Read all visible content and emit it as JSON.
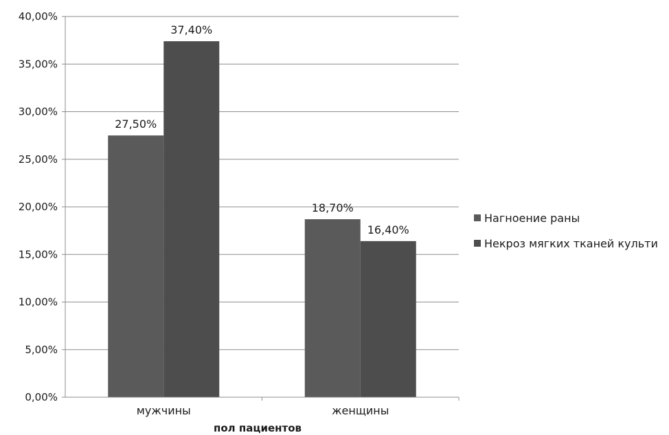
{
  "chart_data": {
    "type": "bar",
    "title": "",
    "xlabel": "пол пациентов",
    "ylabel": "",
    "categories": [
      "мужчины",
      "женщины"
    ],
    "series": [
      {
        "name": "Нагноение раны",
        "values": [
          27.5,
          18.7
        ],
        "labels": [
          "27,50%",
          "18,70%"
        ],
        "color": "#5a5a5a"
      },
      {
        "name": "Некроз мягких тканей культи",
        "values": [
          37.4,
          16.4
        ],
        "labels": [
          "37,40%",
          "16,40%"
        ],
        "color": "#4d4d4d"
      }
    ],
    "ylim": [
      0,
      40
    ],
    "yticks": [
      0,
      5,
      10,
      15,
      20,
      25,
      30,
      35,
      40
    ],
    "ytick_labels": [
      "0,00%",
      "5,00%",
      "10,00%",
      "15,00%",
      "20,00%",
      "25,00%",
      "30,00%",
      "35,00%",
      "40,00%"
    ],
    "grid": true,
    "legend_position": "right"
  }
}
